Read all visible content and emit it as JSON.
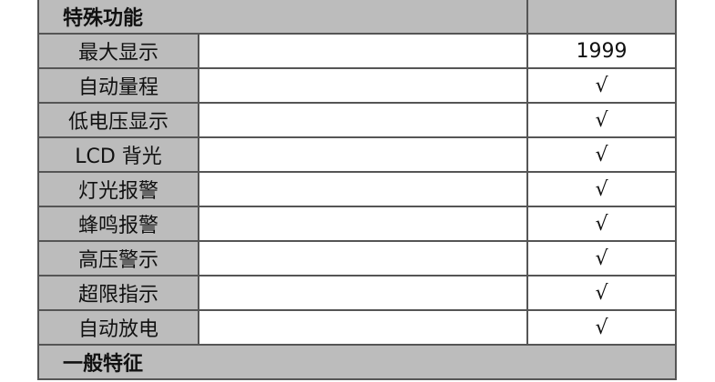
{
  "sections": [
    {
      "title": "特殊功能",
      "rows": [
        {
          "label": "最大显示",
          "value": "1999"
        },
        {
          "label": "自动量程",
          "value": "√"
        },
        {
          "label": "低电压显示",
          "value": "√"
        },
        {
          "label": "LCD 背光",
          "value": "√"
        },
        {
          "label": "灯光报警",
          "value": "√"
        },
        {
          "label": "蜂鸣报警",
          "value": "√"
        },
        {
          "label": "高压警示",
          "value": "√"
        },
        {
          "label": "超限指示",
          "value": "√"
        },
        {
          "label": "自动放电",
          "value": "√"
        }
      ]
    },
    {
      "title": "一般特征"
    }
  ],
  "colors": {
    "header_bg": "#bcbcbc",
    "border": "#555555"
  }
}
